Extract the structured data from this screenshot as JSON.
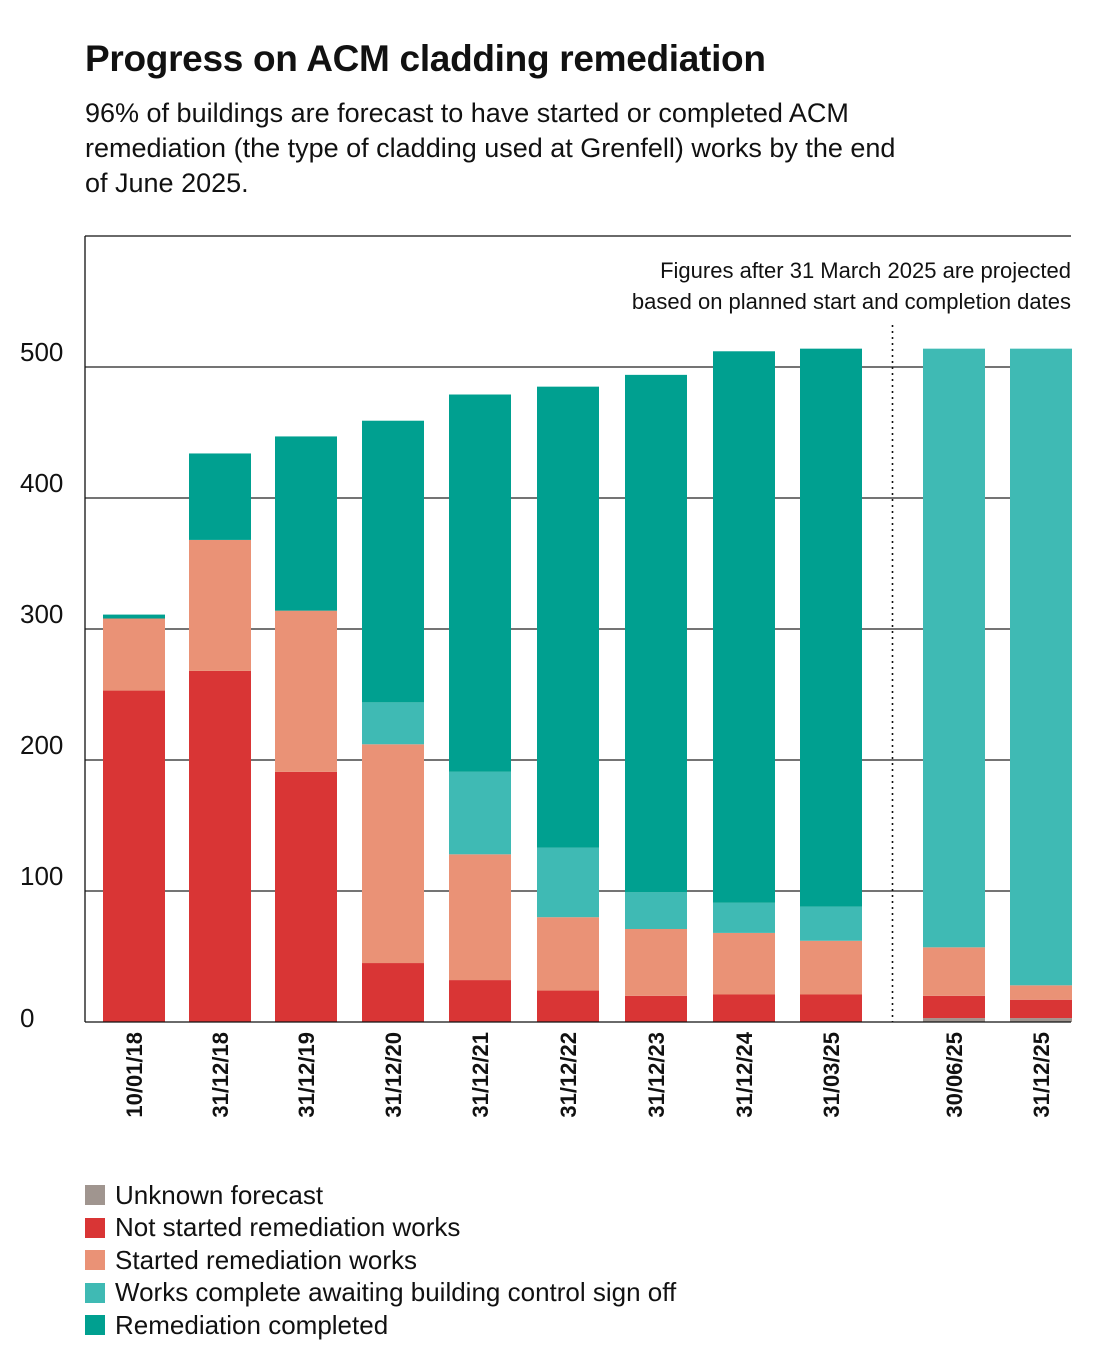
{
  "chart_data": {
    "type": "bar",
    "stacked": true,
    "title": "Progress on ACM cladding remediation",
    "subtitle": "96% of buildings are forecast to have started or completed ACM remediation (the type of cladding used at Grenfell) works by the end of June 2025.",
    "annotation": [
      "Figures after 31 March 2025 are projected",
      "based on planned start and completion dates"
    ],
    "categories": [
      "10/01/18",
      "31/12/18",
      "31/12/19",
      "31/12/20",
      "31/12/21",
      "31/12/22",
      "31/12/23",
      "31/12/24",
      "31/03/25",
      "30/06/25",
      "31/12/25"
    ],
    "projected_from_index": 9,
    "ylim": [
      0,
      600
    ],
    "yticks": [
      0,
      100,
      200,
      300,
      400,
      500
    ],
    "series": [
      {
        "name": "Unknown forecast",
        "color": "#a0958f",
        "values": [
          0,
          0,
          0,
          0,
          0,
          0,
          0,
          0,
          0,
          3,
          3
        ]
      },
      {
        "name": "Not started remediation works",
        "color": "#d93535",
        "values": [
          253,
          268,
          191,
          45,
          32,
          24,
          20,
          21,
          21,
          17,
          14
        ]
      },
      {
        "name": "Started remediation works",
        "color": "#ea9276",
        "values": [
          55,
          100,
          123,
          167,
          96,
          56,
          51,
          47,
          41,
          37,
          11
        ]
      },
      {
        "name": "Works complete awaiting building control sign off",
        "color": "#3fbab4",
        "values": [
          0,
          0,
          0,
          32,
          63,
          53,
          28,
          23,
          26,
          457,
          486
        ]
      },
      {
        "name": "Remediation completed",
        "color": "#00a090",
        "values": [
          3,
          66,
          133,
          215,
          288,
          352,
          395,
          421,
          426,
          0,
          0
        ]
      }
    ]
  }
}
